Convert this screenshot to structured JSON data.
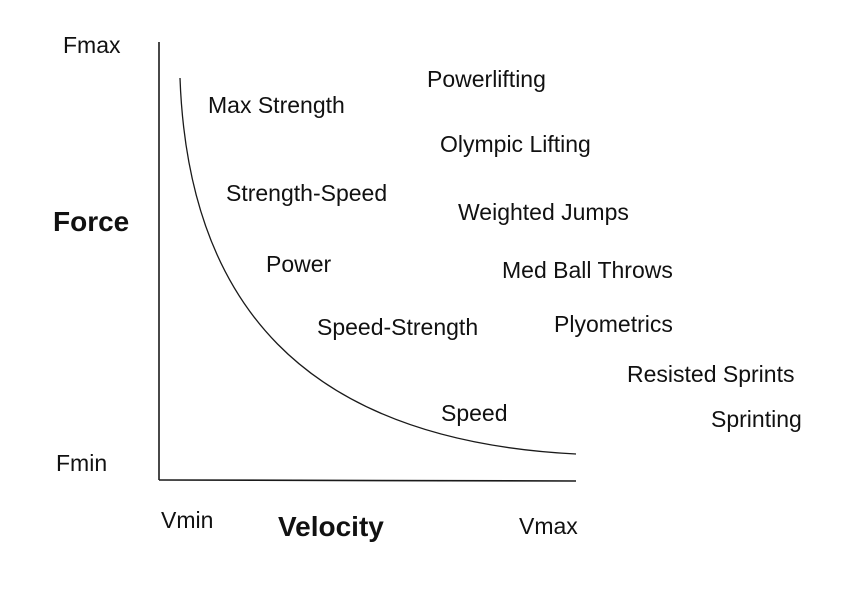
{
  "axes": {
    "y_title": "Force",
    "x_title": "Velocity",
    "y_max_label": "Fmax",
    "y_min_label": "Fmin",
    "x_min_label": "Vmin",
    "x_max_label": "Vmax"
  },
  "curve_labels": [
    "Max Strength",
    "Strength-Speed",
    "Power",
    "Speed-Strength",
    "Speed"
  ],
  "examples": [
    "Powerlifting",
    "Olympic Lifting",
    "Weighted Jumps",
    "Med Ball Throws",
    "Plyometrics",
    "Resisted Sprints",
    "Sprinting"
  ],
  "colors": {
    "line": "#1a1a1a",
    "text": "#111111",
    "background": "#ffffff"
  }
}
